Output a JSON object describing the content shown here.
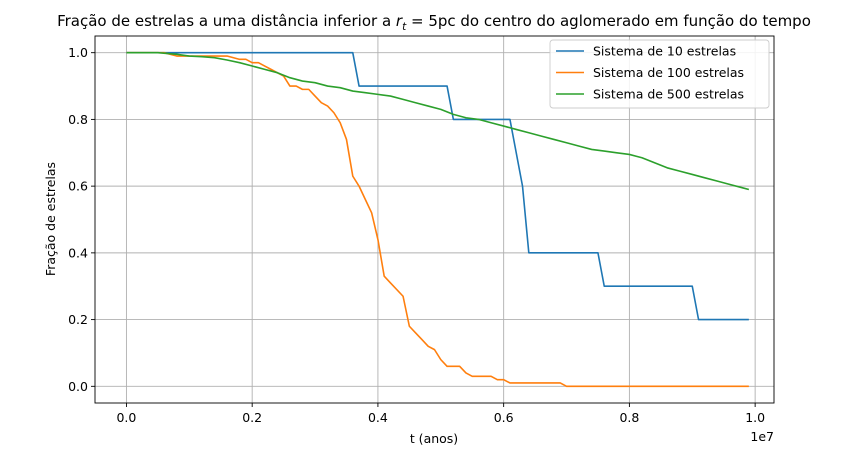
{
  "chart_data": {
    "type": "line",
    "title": "Fração de estrelas a uma distância inferior a r_t = 5pc do centro do aglomerado em função do tempo",
    "title_parts": {
      "prefix": "Fração de estrelas a uma distância inferior a ",
      "symbol": "r",
      "subscript": "t",
      "equals": " = 5pc do centro do aglomerado em função do tempo"
    },
    "xlabel": "t (anos)",
    "ylabel": "Fração de estrelas",
    "x_multiplier_label": "1e7",
    "xlim": [
      -0.05,
      1.03
    ],
    "ylim": [
      -0.05,
      1.05
    ],
    "x_scale": 10000000,
    "xticks": [
      0.0,
      0.2,
      0.4,
      0.6,
      0.8,
      1.0
    ],
    "xtick_labels": [
      "0.0",
      "0.2",
      "0.4",
      "0.6",
      "0.8",
      "1.0"
    ],
    "yticks": [
      0.0,
      0.2,
      0.4,
      0.6,
      0.8,
      1.0
    ],
    "ytick_labels": [
      "0.0",
      "0.2",
      "0.4",
      "0.6",
      "0.8",
      "1.0"
    ],
    "grid": true,
    "legend_position": "top-right",
    "series": [
      {
        "name": "Sistema de 10 estrelas",
        "color": "#1f77b4",
        "x": [
          0.0,
          0.36,
          0.37,
          0.51,
          0.52,
          0.61,
          0.63,
          0.64,
          0.75,
          0.76,
          0.9,
          0.91,
          0.99
        ],
        "y": [
          1.0,
          1.0,
          0.9,
          0.9,
          0.8,
          0.8,
          0.6,
          0.4,
          0.4,
          0.3,
          0.3,
          0.2,
          0.2
        ]
      },
      {
        "name": "Sistema de 100 estrelas",
        "color": "#ff7f0e",
        "x": [
          0.0,
          0.06,
          0.08,
          0.09,
          0.1,
          0.12,
          0.14,
          0.16,
          0.18,
          0.19,
          0.2,
          0.21,
          0.22,
          0.23,
          0.25,
          0.26,
          0.27,
          0.28,
          0.29,
          0.3,
          0.31,
          0.32,
          0.33,
          0.34,
          0.35,
          0.36,
          0.37,
          0.38,
          0.39,
          0.4,
          0.41,
          0.42,
          0.44,
          0.45,
          0.46,
          0.47,
          0.48,
          0.49,
          0.5,
          0.51,
          0.52,
          0.53,
          0.54,
          0.55,
          0.56,
          0.57,
          0.58,
          0.59,
          0.6,
          0.61,
          0.62,
          0.64,
          0.69,
          0.7,
          0.75,
          0.8,
          0.85,
          0.9,
          0.95,
          0.99
        ],
        "y": [
          1.0,
          1.0,
          0.99,
          0.99,
          0.99,
          0.99,
          0.99,
          0.99,
          0.98,
          0.98,
          0.97,
          0.97,
          0.96,
          0.95,
          0.93,
          0.9,
          0.9,
          0.89,
          0.89,
          0.87,
          0.85,
          0.84,
          0.82,
          0.79,
          0.74,
          0.63,
          0.6,
          0.56,
          0.52,
          0.44,
          0.33,
          0.31,
          0.27,
          0.18,
          0.16,
          0.14,
          0.12,
          0.11,
          0.08,
          0.06,
          0.06,
          0.06,
          0.04,
          0.03,
          0.03,
          0.03,
          0.03,
          0.02,
          0.02,
          0.01,
          0.01,
          0.01,
          0.01,
          0.0,
          0.0,
          0.0,
          0.0,
          0.0,
          0.0,
          0.0
        ]
      },
      {
        "name": "Sistema de 500 estrelas",
        "color": "#2ca02c",
        "x": [
          0.0,
          0.05,
          0.08,
          0.1,
          0.12,
          0.14,
          0.16,
          0.18,
          0.2,
          0.22,
          0.24,
          0.26,
          0.28,
          0.3,
          0.32,
          0.34,
          0.36,
          0.38,
          0.4,
          0.42,
          0.44,
          0.46,
          0.48,
          0.5,
          0.52,
          0.54,
          0.56,
          0.58,
          0.6,
          0.62,
          0.64,
          0.66,
          0.68,
          0.7,
          0.72,
          0.74,
          0.76,
          0.78,
          0.8,
          0.82,
          0.84,
          0.86,
          0.88,
          0.9,
          0.92,
          0.94,
          0.96,
          0.98,
          0.99
        ],
        "y": [
          1.0,
          1.0,
          0.995,
          0.99,
          0.988,
          0.985,
          0.978,
          0.97,
          0.96,
          0.95,
          0.94,
          0.925,
          0.915,
          0.91,
          0.9,
          0.895,
          0.885,
          0.88,
          0.875,
          0.87,
          0.86,
          0.85,
          0.84,
          0.83,
          0.815,
          0.805,
          0.8,
          0.79,
          0.78,
          0.77,
          0.76,
          0.75,
          0.74,
          0.73,
          0.72,
          0.71,
          0.705,
          0.7,
          0.695,
          0.685,
          0.67,
          0.655,
          0.645,
          0.635,
          0.625,
          0.615,
          0.605,
          0.595,
          0.59
        ]
      }
    ]
  }
}
